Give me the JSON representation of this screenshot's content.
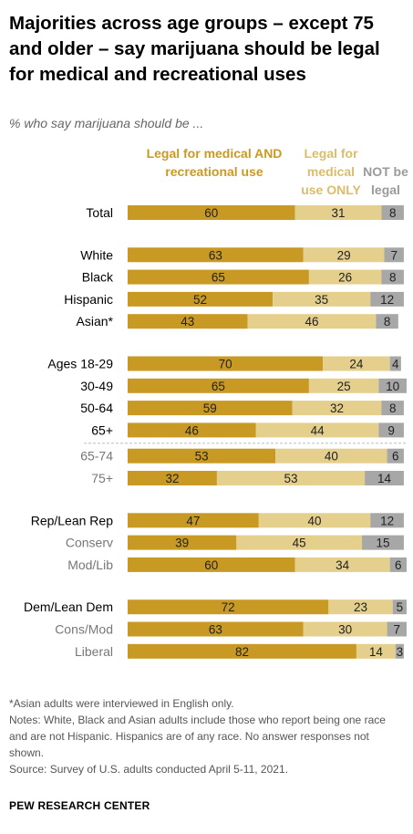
{
  "title": "Majorities across age groups – except 75 and older – say marijuana should be legal for medical and recreational uses",
  "subtitle": "% who say marijuana should be ...",
  "chart_data": {
    "type": "bar",
    "stacked": true,
    "orientation": "horizontal",
    "columns": [
      {
        "name": "Legal for medical AND recreational use",
        "color": "#c99a23"
      },
      {
        "name": "Legal for medical use ONLY",
        "color": "#e5cf8c"
      },
      {
        "name": "NOT be legal",
        "color": "#a7a7a7"
      }
    ],
    "rows": [
      {
        "label": "Total",
        "values": [
          60,
          31,
          8
        ],
        "group": 0,
        "style": "main"
      },
      {
        "label": "White",
        "values": [
          63,
          29,
          7
        ],
        "group": 1,
        "style": "main"
      },
      {
        "label": "Black",
        "values": [
          65,
          26,
          8
        ],
        "group": 1,
        "style": "main"
      },
      {
        "label": "Hispanic",
        "values": [
          52,
          35,
          12
        ],
        "group": 1,
        "style": "main"
      },
      {
        "label": "Asian*",
        "values": [
          43,
          46,
          8
        ],
        "group": 1,
        "style": "main"
      },
      {
        "label": "Ages 18-29",
        "values": [
          70,
          24,
          4
        ],
        "group": 2,
        "style": "main"
      },
      {
        "label": "30-49",
        "values": [
          65,
          25,
          10
        ],
        "group": 2,
        "style": "main"
      },
      {
        "label": "50-64",
        "values": [
          59,
          32,
          8
        ],
        "group": 2,
        "style": "main"
      },
      {
        "label": "65+",
        "values": [
          46,
          44,
          9
        ],
        "group": 2,
        "style": "main"
      },
      {
        "label": "65-74",
        "values": [
          53,
          40,
          6
        ],
        "group": 2,
        "style": "sub"
      },
      {
        "label": "75+",
        "values": [
          32,
          53,
          14
        ],
        "group": 2,
        "style": "sub"
      },
      {
        "label": "Rep/Lean Rep",
        "values": [
          47,
          40,
          12
        ],
        "group": 3,
        "style": "main"
      },
      {
        "label": "Conserv",
        "values": [
          39,
          45,
          15
        ],
        "group": 3,
        "style": "sub"
      },
      {
        "label": "Mod/Lib",
        "values": [
          60,
          34,
          6
        ],
        "group": 3,
        "style": "sub"
      },
      {
        "label": "Dem/Lean Dem",
        "values": [
          72,
          23,
          5
        ],
        "group": 4,
        "style": "main"
      },
      {
        "label": "Cons/Mod",
        "values": [
          63,
          30,
          7
        ],
        "group": 4,
        "style": "sub"
      },
      {
        "label": "Liberal",
        "values": [
          82,
          14,
          3
        ],
        "group": 4,
        "style": "sub"
      }
    ],
    "xlim": [
      0,
      100
    ]
  },
  "column_headers": {
    "a": "Legal for medical AND recreational use",
    "b": "Legal for medical use ONLY",
    "c": "NOT be legal"
  },
  "notes": [
    "*Asian adults were interviewed in English only.",
    "Notes: White, Black and Asian adults include those who report being one race and are not Hispanic. Hispanics are of any race. No answer responses not shown.",
    "Source: Survey of U.S. adults conducted April 5-11, 2021."
  ],
  "org": "PEW RESEARCH CENTER"
}
